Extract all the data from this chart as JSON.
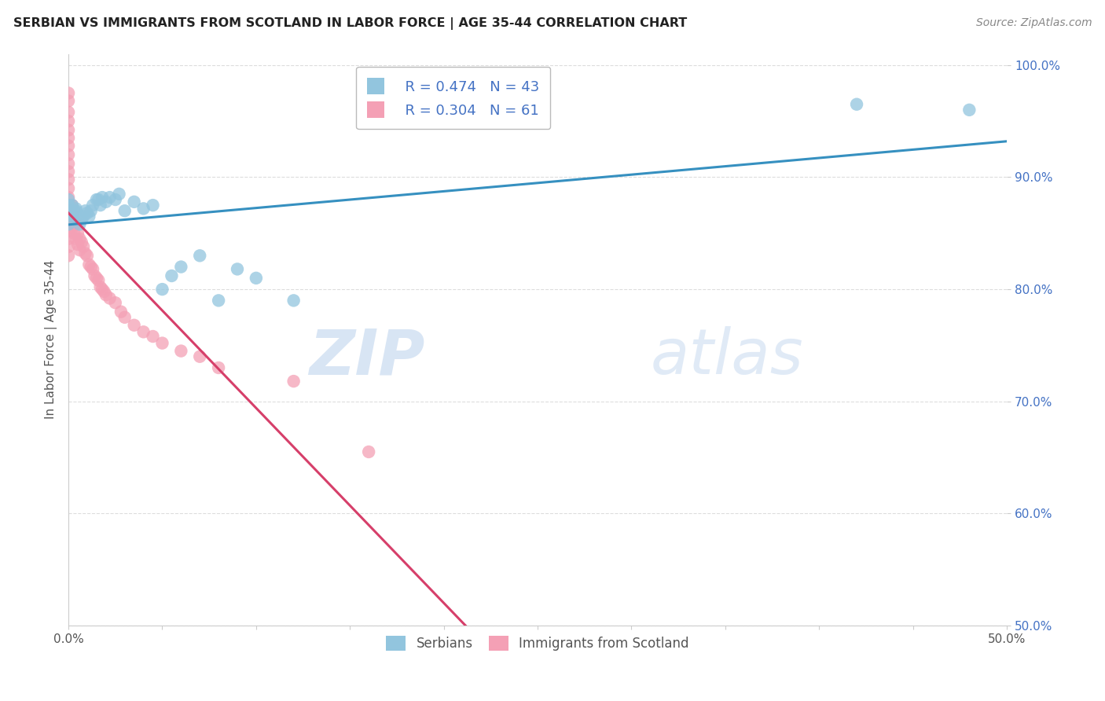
{
  "title": "SERBIAN VS IMMIGRANTS FROM SCOTLAND IN LABOR FORCE | AGE 35-44 CORRELATION CHART",
  "source": "Source: ZipAtlas.com",
  "ylabel": "In Labor Force | Age 35-44",
  "xmin": 0.0,
  "xmax": 0.5,
  "ymin": 0.5,
  "ymax": 1.01,
  "yticks": [
    0.5,
    0.6,
    0.7,
    0.8,
    0.9,
    1.0
  ],
  "ytick_labels": [
    "50.0%",
    "60.0%",
    "70.0%",
    "80.0%",
    "90.0%",
    "100.0%"
  ],
  "blue_R": 0.474,
  "blue_N": 43,
  "pink_R": 0.304,
  "pink_N": 61,
  "blue_color": "#92c5de",
  "pink_color": "#f4a0b5",
  "trend_blue": "#3690c0",
  "trend_pink": "#d63f6a",
  "blue_scatter_x": [
    0.0,
    0.0,
    0.0,
    0.0,
    0.0,
    0.0,
    0.002,
    0.002,
    0.003,
    0.003,
    0.004,
    0.004,
    0.005,
    0.006,
    0.007,
    0.008,
    0.009,
    0.01,
    0.011,
    0.012,
    0.013,
    0.015,
    0.016,
    0.017,
    0.018,
    0.02,
    0.022,
    0.025,
    0.027,
    0.03,
    0.035,
    0.04,
    0.045,
    0.05,
    0.055,
    0.06,
    0.07,
    0.08,
    0.09,
    0.1,
    0.12,
    0.42,
    0.48
  ],
  "blue_scatter_y": [
    0.87,
    0.88,
    0.87,
    0.875,
    0.87,
    0.858,
    0.875,
    0.865,
    0.87,
    0.865,
    0.87,
    0.872,
    0.862,
    0.858,
    0.862,
    0.865,
    0.87,
    0.868,
    0.865,
    0.87,
    0.875,
    0.88,
    0.88,
    0.875,
    0.882,
    0.878,
    0.882,
    0.88,
    0.885,
    0.87,
    0.878,
    0.872,
    0.875,
    0.8,
    0.812,
    0.82,
    0.83,
    0.79,
    0.818,
    0.81,
    0.79,
    0.965,
    0.96
  ],
  "pink_scatter_x": [
    0.0,
    0.0,
    0.0,
    0.0,
    0.0,
    0.0,
    0.0,
    0.0,
    0.0,
    0.0,
    0.0,
    0.0,
    0.0,
    0.0,
    0.0,
    0.0,
    0.0,
    0.0,
    0.0,
    0.0,
    0.001,
    0.001,
    0.002,
    0.002,
    0.002,
    0.003,
    0.003,
    0.003,
    0.004,
    0.004,
    0.005,
    0.005,
    0.006,
    0.006,
    0.007,
    0.008,
    0.009,
    0.01,
    0.011,
    0.012,
    0.013,
    0.014,
    0.015,
    0.016,
    0.017,
    0.018,
    0.019,
    0.02,
    0.022,
    0.025,
    0.028,
    0.03,
    0.035,
    0.04,
    0.045,
    0.05,
    0.06,
    0.07,
    0.08,
    0.12,
    0.16
  ],
  "pink_scatter_y": [
    0.975,
    0.968,
    0.958,
    0.95,
    0.942,
    0.935,
    0.928,
    0.92,
    0.912,
    0.905,
    0.898,
    0.89,
    0.882,
    0.875,
    0.868,
    0.86,
    0.852,
    0.845,
    0.838,
    0.83,
    0.875,
    0.865,
    0.875,
    0.865,
    0.855,
    0.87,
    0.86,
    0.85,
    0.858,
    0.845,
    0.85,
    0.84,
    0.845,
    0.835,
    0.842,
    0.838,
    0.832,
    0.83,
    0.822,
    0.82,
    0.818,
    0.812,
    0.81,
    0.808,
    0.802,
    0.8,
    0.798,
    0.795,
    0.792,
    0.788,
    0.78,
    0.775,
    0.768,
    0.762,
    0.758,
    0.752,
    0.745,
    0.74,
    0.73,
    0.718,
    0.655
  ],
  "background_color": "#ffffff",
  "grid_color": "#dddddd"
}
